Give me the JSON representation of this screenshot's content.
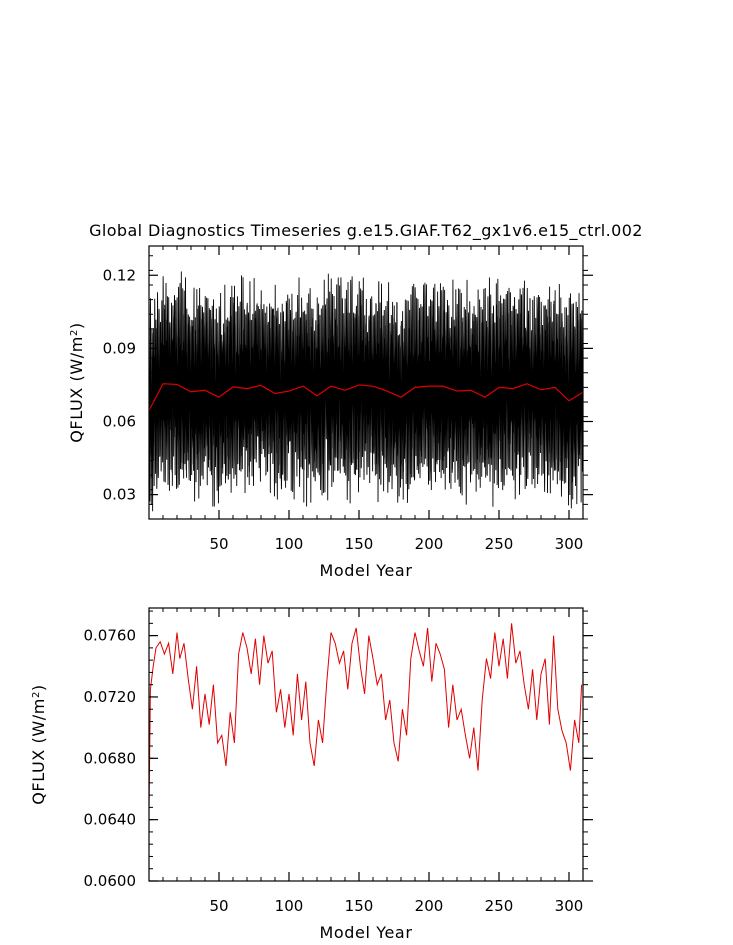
{
  "figure_title": "Global Diagnostics Timeseries g.e15.GIAF.T62_gx1v6.e15_ctrl.002",
  "colors": {
    "monthly_series": "#000000",
    "annual_mean": "#e00000",
    "axes": "#000000"
  },
  "chart_data": [
    {
      "type": "line",
      "title": "Global Diagnostics Timeseries g.e15.GIAF.T62_gx1v6.e15_ctrl.002",
      "xlabel": "Model Year",
      "ylabel": "QFLUX (W/m^2)",
      "ylabel_base": "QFLUX (W/m",
      "ylabel_sup": "2",
      "ylabel_close": ")",
      "xlim": [
        0,
        310
      ],
      "ylim": [
        0.02,
        0.132
      ],
      "xticks": [
        50,
        100,
        150,
        200,
        250,
        300
      ],
      "xtick_labels": [
        "50",
        "100",
        "150",
        "200",
        "250",
        "300"
      ],
      "yticks": [
        0.03,
        0.06,
        0.09,
        0.12
      ],
      "ytick_labels": [
        "0.03",
        "0.06",
        "0.09",
        "0.12"
      ],
      "grid": false,
      "series": [
        {
          "description": "monthly values (seasonal cycle)",
          "x_start": 0,
          "x_end": 310,
          "samples_per_year": 12,
          "minimum_approx": 0.023,
          "maximum_approx": 0.133,
          "typical_low": 0.03,
          "typical_high": 0.12
        },
        {
          "description": "annual mean",
          "x": [
            0,
            10,
            20,
            30,
            40,
            50,
            60,
            70,
            80,
            90,
            100,
            110,
            120,
            130,
            140,
            150,
            160,
            170,
            180,
            190,
            200,
            210,
            220,
            230,
            240,
            250,
            260,
            270,
            280,
            290,
            300,
            310
          ],
          "values": [
            0.0645,
            0.0755,
            0.0752,
            0.0722,
            0.0728,
            0.07,
            0.0742,
            0.0735,
            0.0748,
            0.0715,
            0.0725,
            0.0745,
            0.0705,
            0.0745,
            0.0728,
            0.075,
            0.0745,
            0.0725,
            0.07,
            0.074,
            0.0745,
            0.0745,
            0.0725,
            0.0728,
            0.07,
            0.074,
            0.0735,
            0.0755,
            0.073,
            0.074,
            0.0685,
            0.072
          ]
        }
      ]
    },
    {
      "type": "line",
      "xlabel": "Model Year",
      "ylabel": "QFLUX (W/m^2)",
      "ylabel_base": "QFLUX (W/m",
      "ylabel_sup": "2",
      "ylabel_close": ")",
      "xlim": [
        0,
        310
      ],
      "ylim": [
        0.06,
        0.0778
      ],
      "xticks": [
        50,
        100,
        150,
        200,
        250,
        300
      ],
      "xtick_labels": [
        "50",
        "100",
        "150",
        "200",
        "250",
        "300"
      ],
      "yticks": [
        0.06,
        0.064,
        0.068,
        0.072,
        0.076
      ],
      "ytick_labels": [
        "0.0600",
        "0.0640",
        "0.0680",
        "0.0720",
        "0.0760"
      ],
      "grid": false,
      "series": [
        {
          "description": "annual mean",
          "x": [
            0,
            1,
            3,
            5,
            8,
            11,
            14,
            17,
            20,
            22,
            25,
            28,
            31,
            34,
            37,
            40,
            43,
            46,
            49,
            52,
            55,
            58,
            61,
            64,
            67,
            70,
            73,
            76,
            79,
            82,
            85,
            88,
            91,
            94,
            97,
            100,
            103,
            106,
            109,
            112,
            115,
            118,
            121,
            124,
            127,
            130,
            133,
            136,
            139,
            142,
            145,
            148,
            151,
            154,
            157,
            160,
            163,
            166,
            169,
            172,
            175,
            178,
            181,
            184,
            187,
            190,
            193,
            196,
            199,
            202,
            205,
            208,
            211,
            214,
            217,
            220,
            223,
            226,
            229,
            232,
            235,
            238,
            241,
            244,
            247,
            250,
            253,
            256,
            259,
            262,
            265,
            268,
            271,
            274,
            277,
            280,
            283,
            286,
            289,
            292,
            295,
            298,
            301,
            304,
            307,
            309
          ],
          "values": [
            0.0645,
            0.0725,
            0.074,
            0.0752,
            0.0756,
            0.0748,
            0.0755,
            0.0735,
            0.0762,
            0.0745,
            0.0755,
            0.0732,
            0.0712,
            0.074,
            0.07,
            0.0722,
            0.0702,
            0.0728,
            0.069,
            0.0695,
            0.0675,
            0.071,
            0.069,
            0.0748,
            0.0762,
            0.0752,
            0.0735,
            0.0758,
            0.0728,
            0.076,
            0.0742,
            0.075,
            0.071,
            0.0725,
            0.07,
            0.0722,
            0.0695,
            0.0735,
            0.0705,
            0.073,
            0.069,
            0.0675,
            0.0705,
            0.069,
            0.073,
            0.0762,
            0.0755,
            0.0742,
            0.075,
            0.0725,
            0.0755,
            0.0765,
            0.074,
            0.0722,
            0.076,
            0.0745,
            0.0728,
            0.0735,
            0.0705,
            0.0718,
            0.069,
            0.0678,
            0.0712,
            0.0695,
            0.0745,
            0.0762,
            0.075,
            0.074,
            0.0765,
            0.073,
            0.0755,
            0.0748,
            0.0738,
            0.07,
            0.0728,
            0.0705,
            0.0712,
            0.0695,
            0.068,
            0.07,
            0.0672,
            0.0718,
            0.0745,
            0.0732,
            0.0762,
            0.074,
            0.0758,
            0.0732,
            0.0768,
            0.0742,
            0.075,
            0.0728,
            0.0712,
            0.0738,
            0.0705,
            0.0735,
            0.0745,
            0.0702,
            0.076,
            0.0712,
            0.0698,
            0.069,
            0.0672,
            0.0705,
            0.069,
            0.0728
          ]
        }
      ]
    }
  ]
}
